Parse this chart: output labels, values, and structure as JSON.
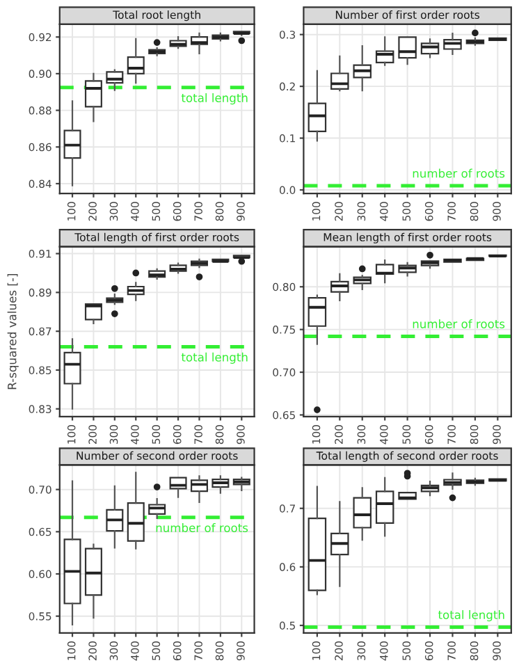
{
  "chart_data": [
    {
      "type": "box",
      "title": "Total root length",
      "categories": [
        "100",
        "200",
        "300",
        "400",
        "500",
        "600",
        "700",
        "800",
        "900"
      ],
      "grid": true,
      "ylim": [
        0.8346,
        0.927
      ],
      "yticks": [
        {
          "value": 0.84,
          "label": "0.84"
        },
        {
          "value": 0.86,
          "label": "0.86"
        },
        {
          "value": 0.88,
          "label": "0.88"
        },
        {
          "value": 0.9,
          "label": "0.90"
        },
        {
          "value": 0.92,
          "label": "0.92"
        }
      ],
      "ref_lines": [
        {
          "axis": "y",
          "value": 0.8925,
          "label": "total length",
          "color": "#33ee33",
          "line_style": "dashed"
        }
      ],
      "boxes": [
        {
          "low": 0.839,
          "q1": 0.854,
          "median": 0.861,
          "q3": 0.869,
          "high": 0.885
        },
        {
          "low": 0.874,
          "q1": 0.882,
          "median": 0.892,
          "q3": 0.896,
          "high": 0.9
        },
        {
          "low": 0.891,
          "q1": 0.895,
          "median": 0.897,
          "q3": 0.901,
          "high": 0.902
        },
        {
          "low": 0.895,
          "q1": 0.9,
          "median": 0.903,
          "q3": 0.909,
          "high": 0.919
        },
        {
          "low": 0.91,
          "q1": 0.911,
          "median": 0.912,
          "q3": 0.913,
          "high": 0.914,
          "outliers": [
            0.917
          ]
        },
        {
          "low": 0.914,
          "q1": 0.915,
          "median": 0.916,
          "q3": 0.918,
          "high": 0.92
        },
        {
          "low": 0.911,
          "q1": 0.916,
          "median": 0.917,
          "q3": 0.92,
          "high": 0.922
        },
        {
          "low": 0.918,
          "q1": 0.919,
          "median": 0.92,
          "q3": 0.921,
          "high": 0.922
        },
        {
          "low": 0.921,
          "q1": 0.922,
          "median": 0.922,
          "q3": 0.923,
          "high": 0.923,
          "outliers": [
            0.918
          ]
        }
      ]
    },
    {
      "type": "box",
      "title": "Number of first order roots",
      "categories": [
        "100",
        "200",
        "300",
        "400",
        "500",
        "600",
        "700",
        "800",
        "900"
      ],
      "grid": true,
      "ylim": [
        -0.007,
        0.32
      ],
      "yticks": [
        {
          "value": 0,
          "label": "0.0"
        },
        {
          "value": 0.1,
          "label": "0.1"
        },
        {
          "value": 0.2,
          "label": "0.2"
        },
        {
          "value": 0.3,
          "label": "0.3"
        }
      ],
      "ref_lines": [
        {
          "axis": "y",
          "value": 0.008,
          "label": "number of roots",
          "color": "#33ee33",
          "line_style": "dashed"
        }
      ],
      "boxes": [
        {
          "low": 0.095,
          "q1": 0.113,
          "median": 0.143,
          "q3": 0.167,
          "high": 0.23
        },
        {
          "low": 0.192,
          "q1": 0.195,
          "median": 0.205,
          "q3": 0.225,
          "high": 0.258
        },
        {
          "low": 0.192,
          "q1": 0.217,
          "median": 0.23,
          "q3": 0.241,
          "high": 0.278
        },
        {
          "low": 0.241,
          "q1": 0.246,
          "median": 0.262,
          "q3": 0.268,
          "high": 0.295
        },
        {
          "low": 0.243,
          "q1": 0.255,
          "median": 0.267,
          "q3": 0.295,
          "high": 0.296
        },
        {
          "low": 0.256,
          "q1": 0.263,
          "median": 0.276,
          "q3": 0.283,
          "high": 0.291
        },
        {
          "low": 0.262,
          "q1": 0.272,
          "median": 0.283,
          "q3": 0.29,
          "high": 0.302
        },
        {
          "low": 0.28,
          "q1": 0.283,
          "median": 0.286,
          "q3": 0.289,
          "high": 0.293,
          "outliers": [
            0.303
          ]
        },
        {
          "low": 0.288,
          "q1": 0.289,
          "median": 0.291,
          "q3": 0.293,
          "high": 0.294
        }
      ]
    },
    {
      "type": "box",
      "title": "Total length of first order roots",
      "ylabel": "R-squared values [-]",
      "categories": [
        "100",
        "200",
        "300",
        "400",
        "500",
        "600",
        "700",
        "800",
        "900"
      ],
      "grid": true,
      "ylim": [
        0.826,
        0.9136
      ],
      "yticks": [
        0.83,
        0.85,
        0.87,
        0.89,
        0.91
      ],
      "ref_lines": [
        {
          "axis": "y",
          "value": 0.862,
          "label": "total length",
          "color": "#33ee33",
          "line_style": "dashed"
        }
      ],
      "boxes": [
        {
          "low": 0.83,
          "q1": 0.843,
          "median": 0.853,
          "q3": 0.859,
          "high": 0.866
        },
        {
          "low": 0.874,
          "q1": 0.876,
          "median": 0.883,
          "q3": 0.884,
          "high": 0.884
        },
        {
          "low": 0.884,
          "q1": 0.885,
          "median": 0.886,
          "q3": 0.887,
          "high": 0.889,
          "outliers": [
            0.879,
            0.892
          ]
        },
        {
          "low": 0.886,
          "q1": 0.889,
          "median": 0.891,
          "q3": 0.893,
          "high": 0.895,
          "outliers": [
            0.9
          ]
        },
        {
          "low": 0.897,
          "q1": 0.898,
          "median": 0.899,
          "q3": 0.901,
          "high": 0.902
        },
        {
          "low": 0.9,
          "q1": 0.901,
          "median": 0.902,
          "q3": 0.904,
          "high": 0.905
        },
        {
          "low": 0.903,
          "q1": 0.904,
          "median": 0.905,
          "q3": 0.906,
          "high": 0.907,
          "outliers": [
            0.898
          ]
        },
        {
          "low": 0.906,
          "q1": 0.906,
          "median": 0.906,
          "q3": 0.907,
          "high": 0.907
        },
        {
          "low": 0.907,
          "q1": 0.908,
          "median": 0.908,
          "q3": 0.909,
          "high": 0.909,
          "outliers": [
            0.906
          ]
        }
      ]
    },
    {
      "type": "box",
      "title": "Mean length of first order roots",
      "categories": [
        "100",
        "200",
        "300",
        "400",
        "500",
        "600",
        "700",
        "800",
        "900"
      ],
      "grid": true,
      "ylim": [
        0.648,
        0.847
      ],
      "yticks": [
        0.65,
        {
          "value": 0.7,
          "label": "0.70"
        },
        0.75,
        {
          "value": 0.8,
          "label": "0.80"
        }
      ],
      "ref_lines": [
        {
          "axis": "y",
          "value": 0.742,
          "label": "number of roots",
          "color": "#33ee33",
          "line_style": "dashed"
        }
      ],
      "boxes": [
        {
          "low": 0.733,
          "q1": 0.754,
          "median": 0.776,
          "q3": 0.787,
          "high": 0.79,
          "outliers": [
            0.656
          ]
        },
        {
          "low": 0.784,
          "q1": 0.794,
          "median": 0.801,
          "q3": 0.806,
          "high": 0.815
        },
        {
          "low": 0.797,
          "q1": 0.804,
          "median": 0.808,
          "q3": 0.811,
          "high": 0.813,
          "outliers": [
            0.821
          ]
        },
        {
          "low": 0.805,
          "q1": 0.815,
          "median": 0.816,
          "q3": 0.826,
          "high": 0.831
        },
        {
          "low": 0.813,
          "q1": 0.817,
          "median": 0.822,
          "q3": 0.825,
          "high": 0.828
        },
        {
          "low": 0.822,
          "q1": 0.825,
          "median": 0.828,
          "q3": 0.83,
          "high": 0.831,
          "outliers": [
            0.837
          ]
        },
        {
          "low": 0.828,
          "q1": 0.829,
          "median": 0.831,
          "q3": 0.832,
          "high": 0.833
        },
        {
          "low": 0.83,
          "q1": 0.831,
          "median": 0.833,
          "q3": 0.833,
          "high": 0.834
        },
        {
          "low": 0.835,
          "q1": 0.836,
          "median": 0.836,
          "q3": 0.837,
          "high": 0.837
        }
      ]
    },
    {
      "type": "box",
      "title": "Number of second order roots",
      "categories": [
        "100",
        "200",
        "300",
        "400",
        "500",
        "600",
        "700",
        "800",
        "900"
      ],
      "grid": true,
      "ylim": [
        0.53,
        0.729
      ],
      "yticks": [
        0.55,
        {
          "value": 0.6,
          "label": "0.60"
        },
        0.65,
        {
          "value": 0.7,
          "label": "0.70"
        }
      ],
      "ref_lines": [
        {
          "axis": "y",
          "value": 0.667,
          "label": "number of roots",
          "color": "#33ee33",
          "line_style": "dashed"
        }
      ],
      "boxes": [
        {
          "low": 0.54,
          "q1": 0.565,
          "median": 0.603,
          "q3": 0.641,
          "high": 0.71
        },
        {
          "low": 0.548,
          "q1": 0.575,
          "median": 0.601,
          "q3": 0.63,
          "high": 0.635
        },
        {
          "low": 0.631,
          "q1": 0.651,
          "median": 0.664,
          "q3": 0.676,
          "high": 0.704
        },
        {
          "low": 0.63,
          "q1": 0.639,
          "median": 0.66,
          "q3": 0.684,
          "high": 0.72
        },
        {
          "low": 0.666,
          "q1": 0.671,
          "median": 0.678,
          "q3": 0.682,
          "high": 0.689,
          "outliers": [
            0.703
          ]
        },
        {
          "low": 0.691,
          "q1": 0.701,
          "median": 0.705,
          "q3": 0.714,
          "high": 0.714
        },
        {
          "low": 0.685,
          "q1": 0.698,
          "median": 0.706,
          "q3": 0.711,
          "high": 0.716
        },
        {
          "low": 0.696,
          "q1": 0.703,
          "median": 0.708,
          "q3": 0.712,
          "high": 0.716
        },
        {
          "low": 0.699,
          "q1": 0.706,
          "median": 0.709,
          "q3": 0.712,
          "high": 0.714
        }
      ]
    },
    {
      "type": "box",
      "title": "Total length of second order roots",
      "categories": [
        "100",
        "200",
        "300",
        "400",
        "500",
        "600",
        "700",
        "800",
        "900"
      ],
      "grid": true,
      "ylim": [
        0.487,
        0.774
      ],
      "yticks": [
        0.5,
        0.6,
        0.7
      ],
      "ref_lines": [
        {
          "axis": "y",
          "value": 0.497,
          "label": "total length",
          "color": "#33ee33",
          "line_style": "dashed"
        }
      ],
      "boxes": [
        {
          "low": 0.553,
          "q1": 0.56,
          "median": 0.611,
          "q3": 0.683,
          "high": 0.737
        },
        {
          "low": 0.567,
          "q1": 0.621,
          "median": 0.64,
          "q3": 0.657,
          "high": 0.711
        },
        {
          "low": 0.646,
          "q1": 0.667,
          "median": 0.689,
          "q3": 0.718,
          "high": 0.735
        },
        {
          "low": 0.653,
          "q1": 0.675,
          "median": 0.708,
          "q3": 0.729,
          "high": 0.752
        },
        {
          "low": 0.714,
          "q1": 0.716,
          "median": 0.718,
          "q3": 0.727,
          "high": 0.728,
          "outliers": [
            0.755,
            0.76
          ]
        },
        {
          "low": 0.722,
          "q1": 0.729,
          "median": 0.735,
          "q3": 0.739,
          "high": 0.746
        },
        {
          "low": 0.733,
          "q1": 0.74,
          "median": 0.744,
          "q3": 0.749,
          "high": 0.76,
          "outliers": [
            0.718
          ]
        },
        {
          "low": 0.74,
          "q1": 0.743,
          "median": 0.745,
          "q3": 0.748,
          "high": 0.751
        },
        {
          "low": 0.745,
          "q1": 0.747,
          "median": 0.748,
          "q3": 0.75,
          "high": 0.751
        }
      ]
    }
  ]
}
